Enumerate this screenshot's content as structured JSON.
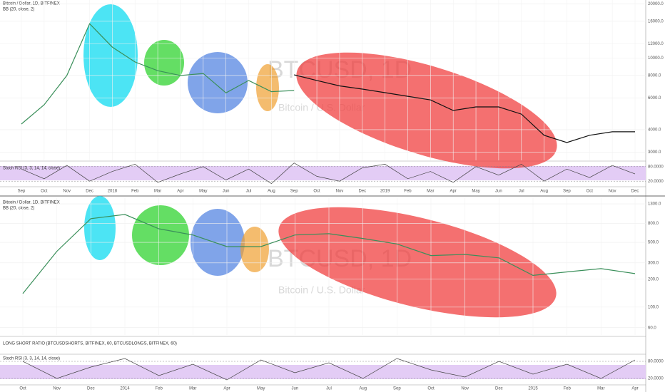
{
  "chart_data": [
    {
      "type": "line",
      "title": "Bitcoin / Dollar, 1D, BITFINEX",
      "subtitle": "BB (20, close, 2)",
      "watermark": "BTCUSD, 1D",
      "watermark_sub": "Bitcoin / U.S. Dollar",
      "log": true,
      "grid": true,
      "categories": [
        "Sep",
        "Oct",
        "Nov",
        "Dec",
        "2018",
        "Feb",
        "Mar",
        "Apr",
        "May",
        "Jun",
        "Jul",
        "Aug",
        "Sep",
        "Oct",
        "Nov",
        "Dec",
        "2019",
        "Feb",
        "Mar",
        "Apr",
        "May",
        "Jun",
        "Jul",
        "Aug",
        "Sep",
        "Oct",
        "Nov",
        "Dec"
      ],
      "series": [
        {
          "color": "#3a8f5a",
          "values": [
            4300,
            5500,
            8000,
            15500,
            11500,
            9500,
            8500,
            8000,
            8200,
            6400,
            7500,
            6500,
            6600,
            null,
            null,
            null,
            null,
            null,
            null,
            null,
            null,
            null,
            null,
            null,
            null,
            null,
            null,
            null
          ]
        },
        {
          "color": "#111111",
          "values": [
            null,
            null,
            null,
            null,
            null,
            null,
            null,
            null,
            null,
            null,
            null,
            null,
            8060,
            7500,
            7000,
            6720,
            6420,
            6130,
            5850,
            5110,
            5350,
            5350,
            4880,
            3720,
            3390,
            3720,
            3890,
            3890
          ]
        }
      ],
      "ylim": [
        2700,
        21000
      ],
      "yticks": [
        {
          "value": 20000,
          "label": "20000.0"
        },
        {
          "value": 16000,
          "label": "16000.0"
        },
        {
          "value": 12000,
          "label": "12000.0"
        },
        {
          "value": 10000,
          "label": "10000.0"
        },
        {
          "value": 8000,
          "label": "8000.0"
        },
        {
          "value": 6000,
          "label": "6000.0"
        },
        {
          "value": 4000,
          "label": "4000.0"
        },
        {
          "value": 3000,
          "label": "3000.0"
        }
      ]
    },
    {
      "type": "line",
      "title": "Stoch RSI (3, 3, 14, 14, close)",
      "color": "#444444",
      "values": [
        70,
        30,
        85,
        20,
        60,
        90,
        15,
        50,
        80,
        25,
        70,
        10,
        95,
        40,
        20,
        75,
        90,
        30,
        60,
        15,
        80,
        45,
        90,
        20,
        70,
        35,
        85,
        50
      ],
      "ylim": [
        0,
        100
      ],
      "yticks": [
        {
          "value": 80,
          "label": "80.0000"
        },
        {
          "value": 20,
          "label": "20.0000"
        }
      ]
    },
    {
      "type": "line",
      "title": "Bitcoin / Dollar, 1D, BITFINEX",
      "subtitle": "BB (20, close, 2)",
      "watermark": "BTCUSD, 1D",
      "watermark_sub": "Bitcoin / U.S. Dollar",
      "log": true,
      "grid": true,
      "categories": [
        "Oct",
        "Nov",
        "Dec",
        "2014",
        "Feb",
        "Mar",
        "Apr",
        "May",
        "Jun",
        "Jul",
        "Aug",
        "Sep",
        "Oct",
        "Nov",
        "Dec",
        "2015",
        "Feb",
        "Mar",
        "Apr"
      ],
      "series": [
        {
          "color": "#3a8f5a",
          "values": [
            140,
            400,
            900,
            1000,
            700,
            600,
            450,
            450,
            600,
            620,
            550,
            480,
            360,
            370,
            340,
            220,
            240,
            260,
            230
          ]
        }
      ],
      "ylim": [
        50,
        1500
      ],
      "yticks": [
        {
          "value": 1300,
          "label": "1300.0"
        },
        {
          "value": 800,
          "label": "800.0"
        },
        {
          "value": 500,
          "label": "500.0"
        },
        {
          "value": 300,
          "label": "300.0"
        },
        {
          "value": 200,
          "label": "200.0"
        },
        {
          "value": 100,
          "label": "100.0"
        },
        {
          "value": 60,
          "label": "60.0"
        }
      ]
    },
    {
      "title": "LONG SHORT RATIO (BTCUSDSHORTS, BITFINEX, 60, BTCUSDLONGS, BITFINEX, 60)"
    },
    {
      "type": "line",
      "title": "Stoch RSI (3, 3, 14, 14, close)",
      "color": "#444444",
      "values": [
        80,
        20,
        60,
        90,
        30,
        70,
        15,
        85,
        40,
        75,
        20,
        90,
        50,
        25,
        80,
        35,
        70,
        20,
        85
      ],
      "ylim": [
        0,
        100
      ],
      "yticks": [
        {
          "value": 80,
          "label": "80.0000"
        },
        {
          "value": 20,
          "label": "20.0000"
        }
      ]
    }
  ]
}
